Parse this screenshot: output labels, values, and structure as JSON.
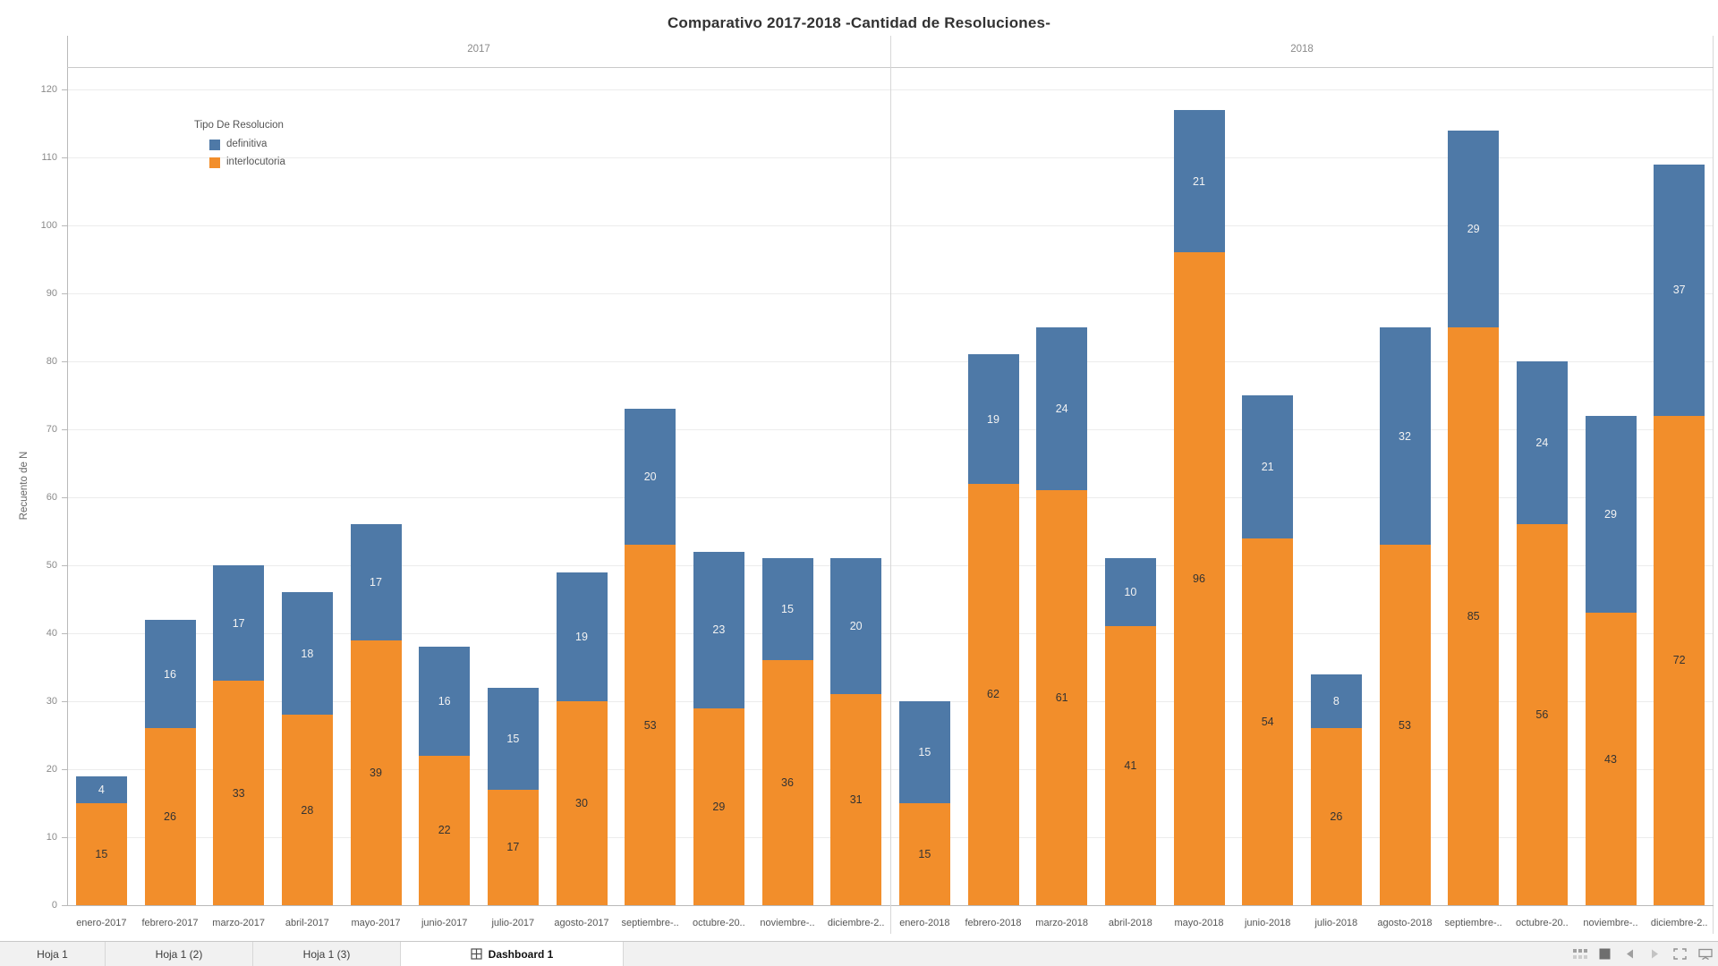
{
  "title": "Comparativo 2017-2018 -Cantidad de Resoluciones-",
  "legend": {
    "title": "Tipo De Resolucion",
    "items": [
      {
        "label": "definitiva",
        "color": "#4e79a7"
      },
      {
        "label": "interlocutoria",
        "color": "#f28e2b"
      }
    ]
  },
  "chart_data": {
    "type": "bar",
    "stacked": true,
    "title": "Comparativo 2017-2018 -Cantidad de Resoluciones-",
    "xlabel": "",
    "ylabel": "Recuento de N",
    "ylim": [
      0,
      123
    ],
    "yticks": [
      0,
      10,
      20,
      30,
      40,
      50,
      60,
      70,
      80,
      90,
      100,
      110,
      120
    ],
    "grid": true,
    "legend_position": "upper-left-inside",
    "panels": [
      {
        "header": "2017",
        "categories": [
          "enero-2017",
          "febrero-2017",
          "marzo-2017",
          "abril-2017",
          "mayo-2017",
          "junio-2017",
          "julio-2017",
          "agosto-2017",
          "septiembre-..",
          "octubre-20..",
          "noviembre-..",
          "diciembre-2.."
        ],
        "series": [
          {
            "name": "interlocutoria",
            "color": "#f28e2b",
            "label_color": "#333333",
            "values": [
              15,
              26,
              33,
              28,
              39,
              22,
              17,
              30,
              53,
              29,
              36,
              31
            ]
          },
          {
            "name": "definitiva",
            "color": "#4e79a7",
            "label_color": "#f2f2f2",
            "values": [
              4,
              16,
              17,
              18,
              17,
              16,
              15,
              19,
              20,
              23,
              15,
              20
            ]
          }
        ]
      },
      {
        "header": "2018",
        "categories": [
          "enero-2018",
          "febrero-2018",
          "marzo-2018",
          "abril-2018",
          "mayo-2018",
          "junio-2018",
          "julio-2018",
          "agosto-2018",
          "septiembre-..",
          "octubre-20..",
          "noviembre-..",
          "diciembre-2.."
        ],
        "series": [
          {
            "name": "interlocutoria",
            "color": "#f28e2b",
            "label_color": "#333333",
            "values": [
              15,
              62,
              61,
              41,
              96,
              54,
              26,
              53,
              85,
              56,
              43,
              72
            ]
          },
          {
            "name": "definitiva",
            "color": "#4e79a7",
            "label_color": "#f2f2f2",
            "values": [
              15,
              19,
              24,
              10,
              21,
              21,
              8,
              32,
              29,
              24,
              29,
              37
            ]
          }
        ]
      }
    ]
  },
  "tabbar": {
    "tabs": [
      {
        "label": "Hoja 1",
        "active": false
      },
      {
        "label": "Hoja 1 (2)",
        "active": false
      },
      {
        "label": "Hoja 1 (3)",
        "active": false
      },
      {
        "label": "Dashboard 1",
        "active": true,
        "icon": "dashboard-grid-icon"
      }
    ],
    "status_icons": [
      "sheet-sorter-icon",
      "filmstrip-icon",
      "previous-sheet-arrow-icon",
      "next-sheet-arrow-icon",
      "fullscreen-icon",
      "presentation-mode-icon"
    ]
  }
}
